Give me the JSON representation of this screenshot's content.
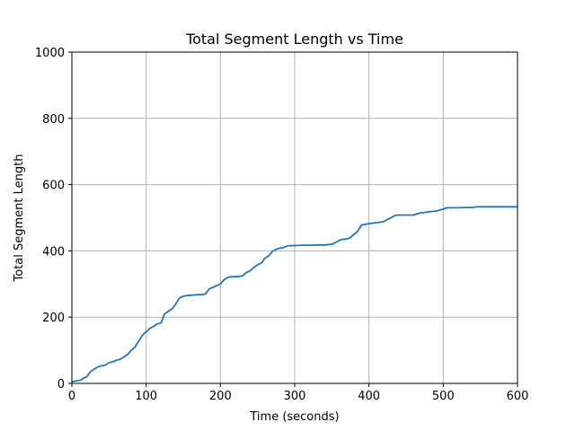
{
  "chart_data": {
    "type": "line",
    "title": "Total Segment Length vs Time",
    "xlabel": "Time (seconds)",
    "ylabel": "Total Segment Length",
    "xlim": [
      0,
      600
    ],
    "ylim": [
      0,
      1000
    ],
    "xticks": [
      0,
      100,
      200,
      300,
      400,
      500,
      600
    ],
    "yticks": [
      0,
      200,
      400,
      600,
      800,
      1000
    ],
    "grid": true,
    "series": [
      {
        "color": "#1f77b4",
        "x": [
          0,
          5,
          12,
          15,
          20,
          25,
          28,
          30,
          35,
          40,
          45,
          50,
          55,
          60,
          65,
          70,
          75,
          80,
          85,
          90,
          95,
          98,
          100,
          105,
          110,
          115,
          120,
          125,
          130,
          135,
          140,
          145,
          150,
          155,
          160,
          165,
          170,
          175,
          180,
          185,
          190,
          195,
          200,
          205,
          210,
          215,
          220,
          225,
          230,
          235,
          240,
          245,
          250,
          255,
          260,
          265,
          270,
          275,
          280,
          285,
          290,
          295,
          300,
          310,
          320,
          330,
          340,
          350,
          355,
          360,
          365,
          370,
          375,
          380,
          385,
          390,
          395,
          400,
          410,
          420,
          425,
          430,
          435,
          440,
          450,
          460,
          465,
          470,
          475,
          480,
          490,
          500,
          505,
          510,
          520,
          530,
          540,
          545,
          550,
          560,
          580,
          600
        ],
        "y": [
          5,
          7,
          10,
          15,
          20,
          35,
          40,
          43,
          50,
          53,
          55,
          63,
          65,
          70,
          73,
          80,
          87,
          100,
          110,
          128,
          145,
          152,
          155,
          166,
          172,
          180,
          182,
          210,
          218,
          225,
          240,
          258,
          263,
          265,
          266,
          267,
          268,
          268,
          270,
          285,
          290,
          295,
          300,
          313,
          320,
          322,
          322,
          323,
          325,
          335,
          340,
          350,
          358,
          363,
          378,
          385,
          398,
          405,
          408,
          410,
          415,
          416,
          416,
          417,
          417,
          418,
          418,
          420,
          425,
          432,
          435,
          436,
          440,
          450,
          460,
          478,
          480,
          482,
          485,
          488,
          495,
          500,
          507,
          508,
          508,
          508,
          512,
          515,
          516,
          518,
          520,
          526,
          530,
          530,
          530,
          531,
          531,
          533,
          533,
          533,
          533,
          533
        ]
      }
    ]
  }
}
